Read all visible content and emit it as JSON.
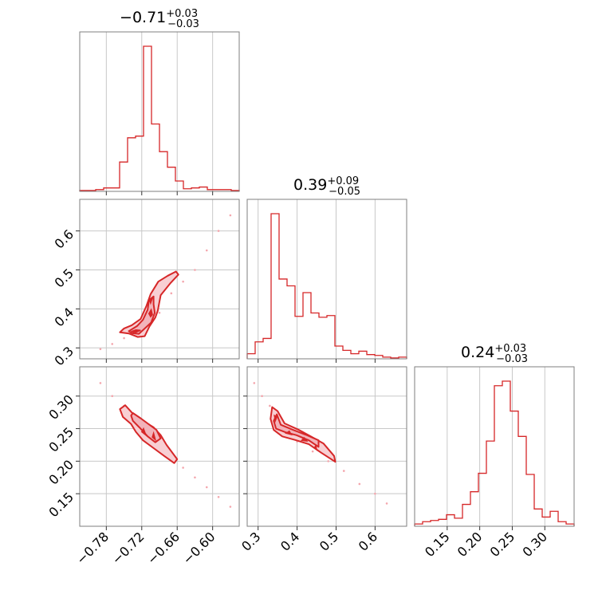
{
  "chart_data": {
    "type": "corner",
    "color": "#d62728",
    "parameters": [
      {
        "median": "0.71",
        "median_sign": "−",
        "plus": "+0.03",
        "minus": "−0.03",
        "range": [
          -0.825,
          -0.555
        ],
        "ticks": [
          -0.78,
          -0.72,
          -0.66,
          -0.6
        ],
        "tick_labels": [
          "−0.78",
          "−0.72",
          "−0.66",
          "−0.60"
        ],
        "hist_edges": [
          -0.825,
          -0.8115,
          -0.798,
          -0.7845,
          -0.771,
          -0.7575,
          -0.744,
          -0.7305,
          -0.717,
          -0.7035,
          -0.69,
          -0.6765,
          -0.663,
          -0.6495,
          -0.636,
          -0.6225,
          -0.609,
          -0.5955,
          -0.582,
          -0.5685,
          -0.555
        ],
        "hist_counts": [
          1,
          1,
          2,
          4,
          4,
          34,
          62,
          64,
          168,
          78,
          46,
          28,
          12,
          3,
          4,
          5,
          2,
          2,
          2,
          1
        ]
      },
      {
        "median": "0.39",
        "median_sign": "",
        "plus": "+0.09",
        "minus": "−0.05",
        "range": [
          0.272,
          0.681
        ],
        "ticks": [
          0.3,
          0.4,
          0.5,
          0.6
        ],
        "tick_labels": [
          "0.3",
          "0.4",
          "0.5",
          "0.6"
        ],
        "hist_edges": [
          0.272,
          0.29245,
          0.3129,
          0.33335,
          0.3538,
          0.37425,
          0.3947,
          0.41515,
          0.4356,
          0.45605,
          0.4765,
          0.49695,
          0.5174,
          0.53785,
          0.5583,
          0.57875,
          0.5992,
          0.61965,
          0.6401,
          0.66055,
          0.681
        ],
        "hist_counts": [
          6,
          20,
          24,
          171,
          94,
          86,
          50,
          78,
          54,
          49,
          51,
          15,
          10,
          6,
          9,
          5,
          4,
          2,
          1,
          2
        ]
      },
      {
        "median": "0.24",
        "median_sign": "",
        "plus": "+0.03",
        "minus": "−0.03",
        "range": [
          0.1,
          0.345
        ],
        "ticks": [
          0.15,
          0.2,
          0.25,
          0.3
        ],
        "tick_labels": [
          "0.15",
          "0.20",
          "0.25",
          "0.30"
        ],
        "hist_edges": [
          0.1,
          0.11225,
          0.1245,
          0.13675,
          0.149,
          0.16125,
          0.1735,
          0.18575,
          0.198,
          0.21025,
          0.2225,
          0.23475,
          0.247,
          0.25925,
          0.2715,
          0.28375,
          0.296,
          0.30825,
          0.3205,
          0.33275,
          0.345
        ],
        "hist_counts": [
          2,
          4,
          5,
          6,
          10,
          7,
          19,
          30,
          46,
          74,
          122,
          126,
          100,
          78,
          45,
          15,
          8,
          13,
          4,
          2
        ]
      }
    ],
    "scatter": {
      "p0_p1": [
        [
          -0.79,
          0.297
        ],
        [
          -0.77,
          0.31
        ],
        [
          -0.75,
          0.325
        ],
        [
          -0.73,
          0.345
        ],
        [
          -0.71,
          0.36
        ],
        [
          -0.69,
          0.39
        ],
        [
          -0.67,
          0.44
        ],
        [
          -0.65,
          0.47
        ],
        [
          -0.63,
          0.5
        ],
        [
          -0.61,
          0.55
        ],
        [
          -0.59,
          0.6
        ],
        [
          -0.57,
          0.64
        ]
      ],
      "p0_p2": [
        [
          -0.79,
          0.32
        ],
        [
          -0.77,
          0.3
        ],
        [
          -0.75,
          0.285
        ],
        [
          -0.73,
          0.265
        ],
        [
          -0.71,
          0.245
        ],
        [
          -0.69,
          0.225
        ],
        [
          -0.67,
          0.205
        ],
        [
          -0.65,
          0.19
        ],
        [
          -0.63,
          0.175
        ],
        [
          -0.61,
          0.16
        ],
        [
          -0.59,
          0.145
        ],
        [
          -0.57,
          0.13
        ]
      ],
      "p1_p2": [
        [
          0.29,
          0.32
        ],
        [
          0.31,
          0.3
        ],
        [
          0.33,
          0.285
        ],
        [
          0.35,
          0.265
        ],
        [
          0.37,
          0.245
        ],
        [
          0.4,
          0.23
        ],
        [
          0.44,
          0.215
        ],
        [
          0.48,
          0.2
        ],
        [
          0.52,
          0.185
        ],
        [
          0.56,
          0.165
        ],
        [
          0.6,
          0.15
        ],
        [
          0.63,
          0.135
        ]
      ]
    },
    "contours": {
      "p0_p1": {
        "outer": [
          [
            -0.742,
            0.337
          ],
          [
            -0.727,
            0.328
          ],
          [
            -0.715,
            0.33
          ],
          [
            -0.707,
            0.355
          ],
          [
            -0.697,
            0.378
          ],
          [
            -0.693,
            0.395
          ],
          [
            -0.688,
            0.435
          ],
          [
            -0.672,
            0.465
          ],
          [
            -0.658,
            0.488
          ],
          [
            -0.662,
            0.496
          ],
          [
            -0.676,
            0.485
          ],
          [
            -0.692,
            0.47
          ],
          [
            -0.705,
            0.438
          ],
          [
            -0.712,
            0.408
          ],
          [
            -0.722,
            0.374
          ],
          [
            -0.737,
            0.358
          ],
          [
            -0.75,
            0.35
          ],
          [
            -0.757,
            0.34
          ]
        ],
        "mid": [
          [
            -0.737,
            0.338
          ],
          [
            -0.725,
            0.336
          ],
          [
            -0.716,
            0.348
          ],
          [
            -0.704,
            0.365
          ],
          [
            -0.698,
            0.39
          ],
          [
            -0.7,
            0.412
          ],
          [
            -0.7,
            0.432
          ],
          [
            -0.708,
            0.422
          ],
          [
            -0.71,
            0.398
          ],
          [
            -0.718,
            0.372
          ],
          [
            -0.728,
            0.356
          ],
          [
            -0.742,
            0.343
          ]
        ],
        "inner": [
          [
            [
              -0.722,
              0.345
            ],
            [
              -0.73,
              0.34
            ],
            [
              -0.738,
              0.342
            ],
            [
              -0.73,
              0.346
            ]
          ],
          [
            [
              -0.702,
              0.385
            ],
            [
              -0.704,
              0.398
            ],
            [
              -0.708,
              0.388
            ],
            [
              -0.705,
              0.38
            ]
          ],
          [
            [
              -0.705,
              0.415
            ],
            [
              -0.702,
              0.428
            ],
            [
              -0.707,
              0.425
            ]
          ]
        ]
      },
      "p0_p2": {
        "outer": [
          [
            -0.757,
            0.28
          ],
          [
            -0.752,
            0.268
          ],
          [
            -0.738,
            0.257
          ],
          [
            -0.73,
            0.245
          ],
          [
            -0.718,
            0.232
          ],
          [
            -0.7,
            0.22
          ],
          [
            -0.682,
            0.208
          ],
          [
            -0.665,
            0.197
          ],
          [
            -0.66,
            0.203
          ],
          [
            -0.678,
            0.225
          ],
          [
            -0.688,
            0.24
          ],
          [
            -0.7,
            0.252
          ],
          [
            -0.718,
            0.262
          ],
          [
            -0.735,
            0.273
          ],
          [
            -0.748,
            0.286
          ]
        ],
        "mid": [
          [
            -0.738,
            0.27
          ],
          [
            -0.735,
            0.262
          ],
          [
            -0.722,
            0.25
          ],
          [
            -0.71,
            0.238
          ],
          [
            -0.697,
            0.229
          ],
          [
            -0.688,
            0.235
          ],
          [
            -0.695,
            0.248
          ],
          [
            -0.707,
            0.256
          ],
          [
            -0.722,
            0.266
          ],
          [
            -0.735,
            0.274
          ]
        ],
        "inner": [
          [
            [
              -0.717,
              0.25
            ],
            [
              -0.713,
              0.24
            ],
            [
              -0.72,
              0.245
            ]
          ],
          [
            [
              -0.7,
              0.243
            ],
            [
              -0.697,
              0.233
            ],
            [
              -0.702,
              0.237
            ]
          ]
        ]
      },
      "p1_p2": {
        "outer": [
          [
            0.332,
            0.265
          ],
          [
            0.34,
            0.248
          ],
          [
            0.362,
            0.238
          ],
          [
            0.398,
            0.232
          ],
          [
            0.43,
            0.226
          ],
          [
            0.462,
            0.213
          ],
          [
            0.498,
            0.199
          ],
          [
            0.495,
            0.208
          ],
          [
            0.468,
            0.227
          ],
          [
            0.435,
            0.238
          ],
          [
            0.405,
            0.248
          ],
          [
            0.368,
            0.258
          ],
          [
            0.35,
            0.277
          ],
          [
            0.336,
            0.283
          ]
        ],
        "mid": [
          [
            0.34,
            0.262
          ],
          [
            0.346,
            0.25
          ],
          [
            0.372,
            0.244
          ],
          [
            0.398,
            0.24
          ],
          [
            0.43,
            0.232
          ],
          [
            0.455,
            0.222
          ],
          [
            0.455,
            0.232
          ],
          [
            0.425,
            0.24
          ],
          [
            0.39,
            0.248
          ],
          [
            0.358,
            0.256
          ],
          [
            0.348,
            0.272
          ]
        ],
        "inner": [
          [
            [
              0.344,
              0.262
            ],
            [
              0.342,
              0.27
            ],
            [
              0.348,
              0.268
            ]
          ],
          [
            [
              0.372,
              0.243
            ],
            [
              0.385,
              0.241
            ],
            [
              0.38,
              0.246
            ]
          ],
          [
            [
              0.412,
              0.232
            ],
            [
              0.425,
              0.231
            ],
            [
              0.418,
              0.236
            ]
          ],
          [
            [
              0.445,
              0.221
            ],
            [
              0.45,
              0.218
            ],
            [
              0.448,
              0.224
            ]
          ]
        ]
      }
    }
  }
}
